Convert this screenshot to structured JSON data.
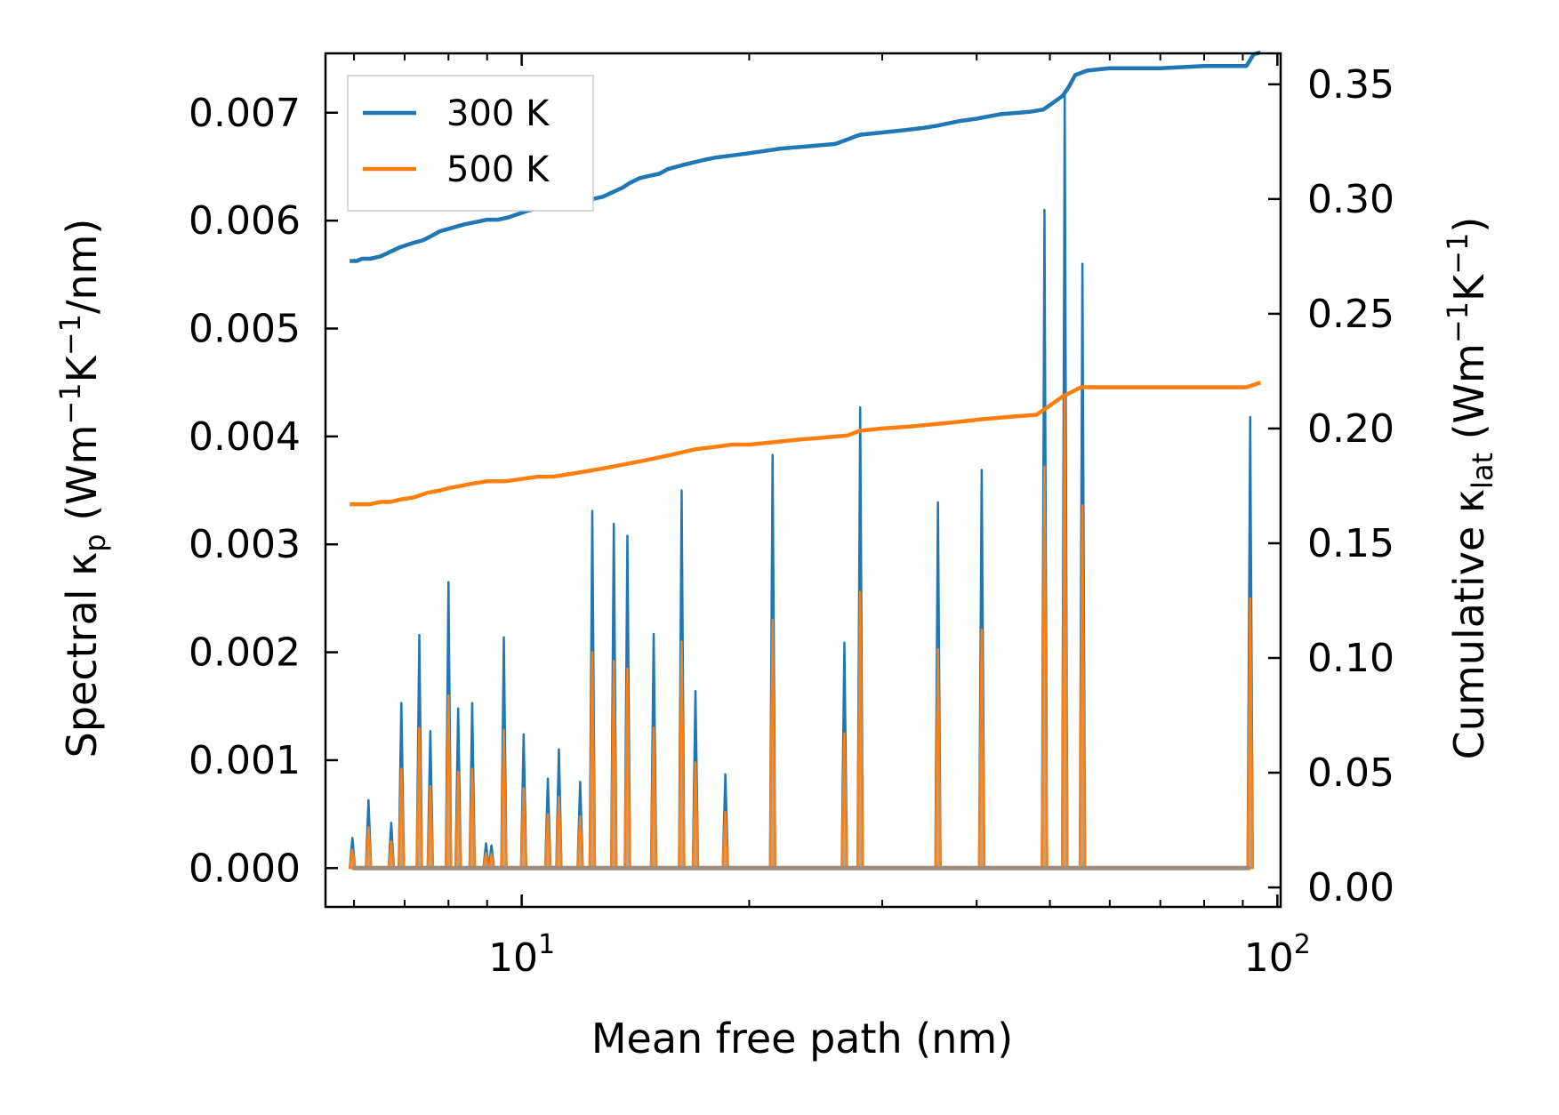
{
  "chart_data": {
    "type": "line",
    "xlabel": "Mean free path (nm)",
    "ylabel_left": "Spectral κp (Wm−1K−1/nm)",
    "ylabel_right": "Cumulative κlat (Wm−1K−1)",
    "ylabel_left_parts": {
      "pre": "Spectral κ",
      "sub": "p",
      "mid1": " (Wm",
      "sup1": "−1",
      "mid2": "K",
      "sup2": "−1",
      "post": "/nm)"
    },
    "ylabel_right_parts": {
      "pre": "Cumulative κ",
      "sub": "lat",
      "mid1": " (Wm",
      "sup1": "−1",
      "mid2": "K",
      "sup2": "−1",
      "post": ")"
    },
    "xscale": "log",
    "xlim": [
      5.5,
      101
    ],
    "ylim_left": [
      -0.00036,
      0.00755
    ],
    "ylim_right": [
      -0.0085,
      0.3635
    ],
    "x_ticks": [
      {
        "value": 10,
        "base": "10",
        "exp": "1"
      },
      {
        "value": 100,
        "base": "10",
        "exp": "2"
      }
    ],
    "y_ticks_left": [
      "0.000",
      "0.001",
      "0.002",
      "0.003",
      "0.004",
      "0.005",
      "0.006",
      "0.007"
    ],
    "y_ticks_right": [
      "0.00",
      "0.05",
      "0.10",
      "0.15",
      "0.20",
      "0.25",
      "0.30",
      "0.35"
    ],
    "legend": {
      "position": "upper-left",
      "entries": [
        "300 K",
        "500 K"
      ]
    },
    "colors": {
      "300 K": "#1f77b4",
      "500 K": "#ff7f0e",
      "fill_300": "#6f9fcb",
      "fill_500": "#c89f78"
    },
    "spectral_peaks": [
      {
        "x": 5.97,
        "v300": 0.00028,
        "v500": 0.00017
      },
      {
        "x": 6.27,
        "v300": 0.00063,
        "v500": 0.00038
      },
      {
        "x": 6.72,
        "v300": 0.00042,
        "v500": 0.00025
      },
      {
        "x": 6.93,
        "v300": 0.00153,
        "v500": 0.00092
      },
      {
        "x": 7.32,
        "v300": 0.00216,
        "v500": 0.0013
      },
      {
        "x": 7.57,
        "v300": 0.00127,
        "v500": 0.00076
      },
      {
        "x": 8.0,
        "v300": 0.00265,
        "v500": 0.0016
      },
      {
        "x": 8.24,
        "v300": 0.00148,
        "v500": 0.00089
      },
      {
        "x": 8.6,
        "v300": 0.00153,
        "v500": 0.00092
      },
      {
        "x": 8.97,
        "v300": 0.00023,
        "v500": 0.00014
      },
      {
        "x": 9.12,
        "v300": 0.00021,
        "v500": 0.00013
      },
      {
        "x": 9.47,
        "v300": 0.00214,
        "v500": 0.00128
      },
      {
        "x": 10.06,
        "v300": 0.00124,
        "v500": 0.00074
      },
      {
        "x": 10.83,
        "v300": 0.00083,
        "v500": 0.0005
      },
      {
        "x": 11.2,
        "v300": 0.0011,
        "v500": 0.00066
      },
      {
        "x": 11.95,
        "v300": 0.0008,
        "v500": 0.00048
      },
      {
        "x": 12.4,
        "v300": 0.00331,
        "v500": 0.002
      },
      {
        "x": 13.24,
        "v300": 0.00319,
        "v500": 0.00192
      },
      {
        "x": 13.8,
        "v300": 0.00308,
        "v500": 0.00185
      },
      {
        "x": 14.95,
        "v300": 0.00217,
        "v500": 0.0013
      },
      {
        "x": 16.28,
        "v300": 0.0035,
        "v500": 0.0021
      },
      {
        "x": 16.98,
        "v300": 0.00164,
        "v500": 0.00098
      },
      {
        "x": 18.6,
        "v300": 0.00087,
        "v500": 0.00052
      },
      {
        "x": 21.48,
        "v300": 0.00383,
        "v500": 0.0023
      },
      {
        "x": 26.73,
        "v300": 0.00209,
        "v500": 0.00125
      },
      {
        "x": 28.05,
        "v300": 0.00427,
        "v500": 0.00256
      },
      {
        "x": 35.55,
        "v300": 0.00339,
        "v500": 0.00203
      },
      {
        "x": 40.62,
        "v300": 0.00369,
        "v500": 0.00221
      },
      {
        "x": 49.18,
        "v300": 0.0061,
        "v500": 0.00372
      },
      {
        "x": 52.31,
        "v300": 0.00718,
        "v500": 0.00438
      },
      {
        "x": 55.21,
        "v300": 0.0056,
        "v500": 0.00336
      },
      {
        "x": 92.05,
        "v300": 0.00418,
        "v500": 0.0025
      }
    ],
    "series": [
      {
        "name": "300 K",
        "axis": "right",
        "x": [
          5.92,
          6.05,
          6.15,
          6.3,
          6.5,
          6.6,
          6.7,
          6.9,
          7.2,
          7.4,
          7.6,
          7.8,
          8.0,
          8.2,
          8.4,
          8.7,
          9.0,
          9.3,
          9.6,
          10.0,
          10.2,
          10.5,
          10.8,
          11.1,
          11.5,
          12.0,
          12.4,
          12.8,
          13.2,
          13.6,
          13.9,
          14.3,
          14.7,
          15.2,
          15.6,
          16.0,
          16.4,
          16.9,
          17.4,
          18.0,
          19.0,
          20.0,
          21.0,
          22.0,
          24.0,
          26.0,
          27.0,
          28.0,
          30.0,
          32.0,
          34.0,
          35.5,
          38.0,
          40.0,
          43.0,
          47.0,
          49.0,
          50.0,
          51.0,
          52.0,
          53.0,
          54.0,
          56.0,
          60.0,
          70.0,
          80.0,
          91.0,
          93.0,
          95.0
        ],
        "y": [
          0.273,
          0.273,
          0.274,
          0.274,
          0.275,
          0.276,
          0.277,
          0.279,
          0.281,
          0.282,
          0.284,
          0.286,
          0.287,
          0.288,
          0.289,
          0.29,
          0.291,
          0.291,
          0.292,
          0.294,
          0.295,
          0.296,
          0.296,
          0.297,
          0.298,
          0.299,
          0.3,
          0.301,
          0.303,
          0.305,
          0.307,
          0.309,
          0.31,
          0.311,
          0.313,
          0.314,
          0.315,
          0.316,
          0.317,
          0.318,
          0.319,
          0.32,
          0.321,
          0.322,
          0.323,
          0.324,
          0.326,
          0.328,
          0.329,
          0.33,
          0.331,
          0.332,
          0.334,
          0.335,
          0.337,
          0.338,
          0.339,
          0.341,
          0.343,
          0.345,
          0.349,
          0.354,
          0.356,
          0.357,
          0.357,
          0.358,
          0.358,
          0.363,
          0.364
        ]
      },
      {
        "name": "500 K",
        "axis": "right",
        "x": [
          5.92,
          6.1,
          6.3,
          6.5,
          6.7,
          6.9,
          7.2,
          7.5,
          7.8,
          8.0,
          8.3,
          8.6,
          9.0,
          9.5,
          10.0,
          10.5,
          11.0,
          11.5,
          12.0,
          12.5,
          13.0,
          13.5,
          14.0,
          14.5,
          15.0,
          15.5,
          16.0,
          16.5,
          17.0,
          18.0,
          19.0,
          20.0,
          21.5,
          23.0,
          25.0,
          27.0,
          28.0,
          30.0,
          33.0,
          35.5,
          38.0,
          40.5,
          44.0,
          48.0,
          49.0,
          50.5,
          52.0,
          53.5,
          55.0,
          60.0,
          70.0,
          80.0,
          91.0,
          93.0,
          95.0
        ],
        "y": [
          0.167,
          0.167,
          0.167,
          0.168,
          0.168,
          0.169,
          0.17,
          0.172,
          0.173,
          0.174,
          0.175,
          0.176,
          0.177,
          0.177,
          0.178,
          0.179,
          0.179,
          0.18,
          0.181,
          0.182,
          0.183,
          0.184,
          0.185,
          0.186,
          0.187,
          0.188,
          0.189,
          0.19,
          0.191,
          0.192,
          0.193,
          0.193,
          0.194,
          0.195,
          0.196,
          0.197,
          0.199,
          0.2,
          0.201,
          0.202,
          0.203,
          0.204,
          0.205,
          0.206,
          0.208,
          0.211,
          0.214,
          0.216,
          0.218,
          0.218,
          0.218,
          0.218,
          0.218,
          0.219,
          0.22
        ]
      }
    ]
  }
}
